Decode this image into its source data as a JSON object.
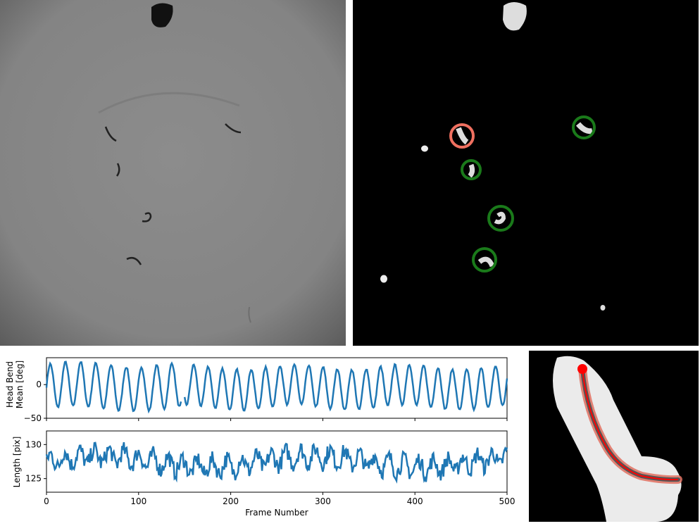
{
  "panels": {
    "raw_frame": {
      "description_icon": "raw-video-frame"
    },
    "segmentation": {
      "description_icon": "binary-mask"
    },
    "skeleton": {
      "description_icon": "worm-skeleton"
    }
  },
  "chart_data": [
    {
      "type": "line",
      "ylabel_line1": "Head Bend",
      "ylabel_line2": "Mean [deg]",
      "xlim": [
        0,
        500
      ],
      "ylim": [
        -50,
        40
      ],
      "yticks": [
        "0",
        "−50"
      ],
      "yticks_values": [
        0,
        -50
      ],
      "series": [
        {
          "segments": [
            {
              "x0": 0,
              "x1": 146,
              "period": 16.5,
              "amp": 33,
              "offset": -3
            },
            {
              "x0": 150,
              "x1": 500,
              "period": 15.6,
              "amp": 30,
              "offset": -4
            }
          ],
          "color": "#1f77b4"
        }
      ]
    },
    {
      "type": "line",
      "ylabel": "Length [pix]",
      "xlabel": "Frame Number",
      "xlim": [
        0,
        500
      ],
      "ylim": [
        123,
        132
      ],
      "yticks": [
        "130",
        "125"
      ],
      "yticks_values": [
        130,
        125
      ],
      "xticks": [
        "0",
        "100",
        "200",
        "300",
        "400",
        "500"
      ],
      "xticks_values": [
        0,
        100,
        200,
        300,
        400,
        500
      ],
      "series": [
        {
          "mean": 127.5,
          "amp": 1.8,
          "noise": 1.2,
          "color": "#1f77b4"
        }
      ]
    }
  ],
  "colors": {
    "line": "#1f77b4",
    "ring_good": "#1a7a1a",
    "ring_bad": "#f07060",
    "skeleton": "#ff0000"
  }
}
